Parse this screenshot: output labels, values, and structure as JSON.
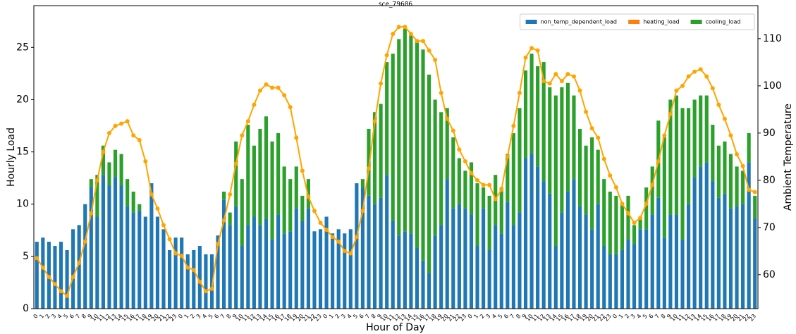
{
  "chart_data": {
    "type": "bar",
    "title": "sce_79686",
    "xlabel": "Hour of Day",
    "ylabel": "Hourly Load",
    "y2label": "Ambient Temperature",
    "categories": [
      "0",
      "1",
      "2",
      "3",
      "4",
      "5",
      "6",
      "7",
      "8",
      "9",
      "10",
      "11",
      "12",
      "13",
      "14",
      "15",
      "16",
      "17",
      "18",
      "19",
      "20",
      "21",
      "22",
      "23",
      "0",
      "1",
      "2",
      "3",
      "4",
      "5",
      "6",
      "7",
      "8",
      "9",
      "10",
      "11",
      "12",
      "13",
      "14",
      "15",
      "16",
      "17",
      "18",
      "19",
      "20",
      "21",
      "22",
      "23",
      "0",
      "1",
      "2",
      "3",
      "4",
      "5",
      "6",
      "7",
      "8",
      "9",
      "10",
      "11",
      "12",
      "13",
      "14",
      "15",
      "16",
      "17",
      "18",
      "19",
      "20",
      "21",
      "22",
      "23",
      "0",
      "1",
      "2",
      "3",
      "4",
      "5",
      "6",
      "7",
      "8",
      "9",
      "10",
      "11",
      "12",
      "13",
      "14",
      "15",
      "16",
      "17",
      "18",
      "19",
      "20",
      "21",
      "22",
      "23",
      "0",
      "1",
      "2",
      "3",
      "4",
      "5",
      "6",
      "7",
      "8",
      "9",
      "10",
      "11",
      "12",
      "13",
      "14",
      "15",
      "16",
      "17",
      "18",
      "19",
      "20",
      "21",
      "22",
      "23"
    ],
    "series": [
      {
        "name": "non_temp_dependent_load",
        "color": "#1f77b4",
        "values": [
          6.4,
          6.8,
          6.4,
          6.0,
          6.4,
          5.6,
          7.6,
          8.0,
          10.0,
          11.6,
          8.8,
          12.8,
          11.8,
          12.6,
          11.8,
          9.8,
          9.2,
          9.4,
          8.8,
          12.0,
          8.8,
          7.6,
          5.6,
          6.8,
          6.8,
          5.2,
          5.6,
          6.0,
          5.2,
          5.2,
          7.0,
          10.4,
          8.0,
          9.8,
          6.0,
          8.0,
          8.8,
          8.0,
          8.6,
          6.6,
          9.0,
          7.2,
          7.4,
          9.6,
          8.4,
          9.6,
          7.4,
          7.6,
          8.8,
          7.2,
          7.6,
          7.2,
          7.6,
          12.0,
          11.6,
          10.8,
          10.0,
          10.6,
          12.8,
          8.4,
          7.0,
          7.4,
          7.2,
          5.8,
          4.6,
          3.4,
          7.0,
          8.0,
          12.4,
          9.6,
          10.0,
          9.6,
          9.0,
          6.0,
          9.6,
          5.6,
          8.0,
          7.2,
          10.2,
          8.0,
          9.2,
          14.4,
          14.8,
          13.6,
          12.2,
          11.0,
          6.0,
          9.2,
          11.2,
          12.4,
          9.8,
          9.0,
          7.6,
          10.0,
          6.0,
          5.2,
          5.2,
          5.6,
          6.6,
          6.2,
          7.6,
          7.6,
          9.0,
          10.6,
          6.8,
          9.0,
          9.0,
          6.6,
          10.0,
          12.6,
          13.6,
          14.0,
          12.2,
          10.6,
          11.0,
          9.6,
          9.8,
          10.0,
          14.0,
          8.6
        ]
      },
      {
        "name": "heating_load",
        "color": "#ff7f0e",
        "values": [
          0,
          0,
          0,
          0,
          0,
          0,
          0,
          0,
          0,
          0,
          0,
          0,
          0,
          0,
          0,
          0,
          0,
          0,
          0,
          0,
          0,
          0,
          0,
          0,
          0,
          0,
          0,
          0,
          0,
          0,
          0,
          0,
          0,
          0,
          0,
          0,
          0,
          0,
          0,
          0,
          0,
          0,
          0,
          0,
          0,
          0,
          0,
          0,
          0,
          0,
          0,
          0,
          0,
          0,
          0,
          0,
          0,
          0,
          0,
          0,
          0,
          0,
          0,
          0,
          0,
          0,
          0,
          0,
          0,
          0,
          0,
          0,
          0,
          0,
          0,
          0,
          0,
          0,
          0,
          0,
          0,
          0,
          0,
          0,
          0,
          0,
          0,
          0,
          0,
          0,
          0,
          0,
          0,
          0,
          0,
          0,
          0,
          0,
          0,
          0,
          0,
          0,
          0,
          0,
          0,
          0,
          0,
          0,
          0,
          0,
          0,
          0,
          0,
          0,
          0,
          0,
          0,
          0,
          0,
          0
        ]
      },
      {
        "name": "cooling_load",
        "color": "#2ca02c",
        "values": [
          0,
          0,
          0,
          0,
          0,
          0,
          0,
          0,
          0,
          0.8,
          4.0,
          2.8,
          2.2,
          2.6,
          3.0,
          2.6,
          2.0,
          0.6,
          0,
          0,
          0,
          0,
          0,
          0,
          0,
          0,
          0,
          0,
          0,
          0,
          0,
          0.8,
          1.2,
          6.2,
          6.4,
          9.6,
          6.8,
          9.2,
          9.8,
          9.4,
          7.8,
          6.4,
          5.0,
          4.0,
          2.4,
          2.8,
          0,
          0,
          0,
          0,
          0,
          0,
          0,
          0,
          0.8,
          6.4,
          8.8,
          9.0,
          10.8,
          16.0,
          18.8,
          19.4,
          19.2,
          19.8,
          20.2,
          19.0,
          13.0,
          10.8,
          6.8,
          6.8,
          4.4,
          3.6,
          5.0,
          6.0,
          2.0,
          5.2,
          4.8,
          4.4,
          4.6,
          8.8,
          10.0,
          8.4,
          9.6,
          9.6,
          11.4,
          10.2,
          14.4,
          12.0,
          10.4,
          8.0,
          7.4,
          6.6,
          8.8,
          5.2,
          6.4,
          6.0,
          5.6,
          4.4,
          4.2,
          1.8,
          1.2,
          4.0,
          4.6,
          7.4,
          9.6,
          11.0,
          11.4,
          12.6,
          9.2,
          7.4,
          6.8,
          6.4,
          5.4,
          5.0,
          5.0,
          5.2,
          3.8,
          3.2,
          2.8,
          2.2
        ]
      }
    ],
    "line": {
      "color": "#ffa500",
      "axis": "y2",
      "values": [
        63.5,
        61.5,
        59.5,
        58,
        56.5,
        55.5,
        59.5,
        62.5,
        67,
        73,
        80,
        86,
        90,
        91.5,
        92,
        92.5,
        89.5,
        88.5,
        84,
        77,
        74,
        70.5,
        67.5,
        64.5,
        64,
        61.5,
        61,
        58.5,
        56.5,
        57,
        66.5,
        71.5,
        77,
        83.5,
        89.5,
        92.5,
        96,
        99,
        100.3,
        99.6,
        99.6,
        98,
        95.5,
        89,
        82,
        76.5,
        73.5,
        71,
        69.5,
        68,
        67,
        65,
        64.5,
        68,
        73.5,
        82.5,
        92.5,
        100.5,
        106.5,
        111,
        112.5,
        112.5,
        111,
        109.5,
        109.5,
        107.5,
        105.5,
        98.5,
        93,
        90.5,
        86.5,
        84,
        81.5,
        80,
        79,
        79,
        76,
        78,
        85,
        91.5,
        98.5,
        106,
        108,
        107.5,
        101,
        100.5,
        102.5,
        101,
        102.5,
        102,
        99,
        94.5,
        91,
        89,
        84.5,
        81,
        78.5,
        75,
        73,
        71,
        72,
        75,
        79,
        84,
        89.5,
        94,
        99,
        100,
        102,
        103,
        103.5,
        102,
        99.5,
        96,
        93,
        89.5,
        85.5,
        83,
        78,
        77.5
      ]
    },
    "ylim": [
      0,
      29
    ],
    "yticks": [
      0,
      5,
      10,
      15,
      20,
      25
    ],
    "y2lim": [
      52.8,
      117
    ],
    "y2ticks": [
      60,
      70,
      80,
      90,
      100,
      110
    ],
    "stacked": true,
    "legend": "upper right"
  }
}
